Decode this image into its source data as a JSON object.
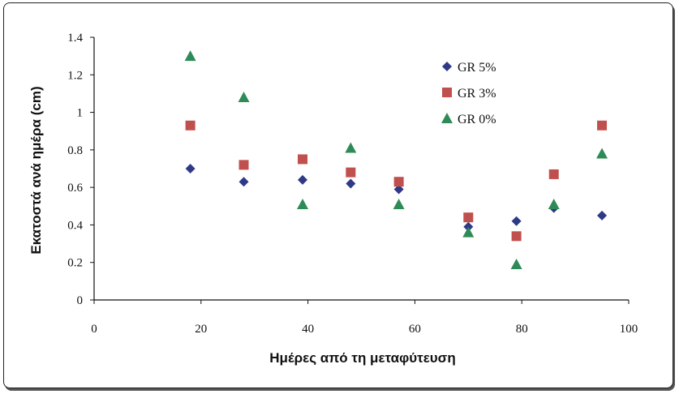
{
  "chart_data": {
    "type": "scatter",
    "title": "",
    "xlabel": "Ημέρες από τη μεταφύτευση",
    "ylabel": "Εκατοστά ανά ημέρα (cm)",
    "xlim": [
      0,
      100
    ],
    "ylim": [
      0,
      1.4
    ],
    "x_ticks": [
      "0",
      "20",
      "40",
      "60",
      "80",
      "100"
    ],
    "y_ticks": [
      "0",
      "0.2",
      "0.4",
      "0.6",
      "0.8",
      "1",
      "1.2",
      "1.4"
    ],
    "grid": false,
    "legend_position": "top-right",
    "series": [
      {
        "name": "GR 5%",
        "marker": "diamond",
        "color": "#2e3a87",
        "x": [
          18,
          28,
          39,
          48,
          57,
          70,
          79,
          86,
          95
        ],
        "y": [
          0.7,
          0.63,
          0.64,
          0.62,
          0.59,
          0.39,
          0.42,
          0.49,
          0.45
        ]
      },
      {
        "name": "GR 3%",
        "marker": "square",
        "color": "#c0504d",
        "x": [
          18,
          28,
          39,
          48,
          57,
          70,
          79,
          86,
          95
        ],
        "y": [
          0.93,
          0.72,
          0.75,
          0.68,
          0.63,
          0.44,
          0.34,
          0.67,
          0.93
        ]
      },
      {
        "name": "GR 0%",
        "marker": "triangle",
        "color": "#2e8b57",
        "x": [
          18,
          28,
          39,
          48,
          57,
          70,
          79,
          86,
          95
        ],
        "y": [
          1.3,
          1.08,
          0.51,
          0.81,
          0.51,
          0.36,
          0.19,
          0.51,
          0.78
        ]
      }
    ]
  }
}
